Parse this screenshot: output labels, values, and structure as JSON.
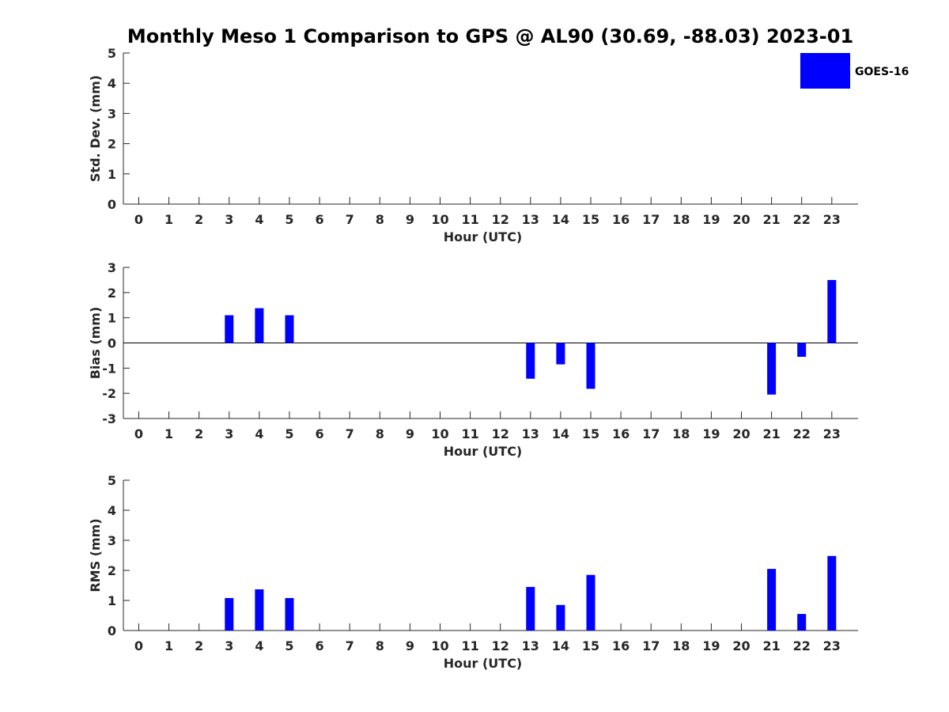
{
  "chart_data": {
    "title": "Monthly Meso 1 Comparison to GPS @ AL90 (30.69, -88.03) 2023-01",
    "legend": {
      "label": "GOES-16",
      "color": "#0000ff",
      "placement": "top-right"
    },
    "bar_color": "#0000ff",
    "subplots": [
      {
        "type": "bar",
        "xlabel": "Hour (UTC)",
        "ylabel": "Std. Dev. (mm)",
        "ylim": [
          0,
          5
        ],
        "yticks": [
          0,
          1,
          2,
          3,
          4,
          5
        ],
        "categories": [
          "0",
          "1",
          "2",
          "3",
          "4",
          "5",
          "6",
          "7",
          "8",
          "9",
          "10",
          "11",
          "12",
          "13",
          "14",
          "15",
          "16",
          "17",
          "18",
          "19",
          "20",
          "21",
          "22",
          "23"
        ],
        "values": [
          0,
          0,
          0,
          0,
          0,
          0,
          0,
          0,
          0,
          0,
          0,
          0,
          0,
          0,
          0,
          0,
          0,
          0,
          0,
          0,
          0,
          0,
          0,
          0
        ],
        "zero_line": false
      },
      {
        "type": "bar",
        "xlabel": "Hour (UTC)",
        "ylabel": "Bias (mm)",
        "ylim": [
          -3,
          3
        ],
        "yticks": [
          -3,
          -2,
          -1,
          0,
          1,
          2,
          3
        ],
        "categories": [
          "0",
          "1",
          "2",
          "3",
          "4",
          "5",
          "6",
          "7",
          "8",
          "9",
          "10",
          "11",
          "12",
          "13",
          "14",
          "15",
          "16",
          "17",
          "18",
          "19",
          "20",
          "21",
          "22",
          "23"
        ],
        "values": [
          0,
          0,
          0,
          1.1,
          1.38,
          1.1,
          0,
          0,
          0,
          0,
          0,
          0,
          0,
          -1.42,
          -0.85,
          -1.82,
          0,
          0,
          0,
          0,
          0,
          -2.05,
          -0.55,
          2.5
        ],
        "zero_line": true
      },
      {
        "type": "bar",
        "xlabel": "Hour (UTC)",
        "ylabel": "RMS (mm)",
        "ylim": [
          0,
          5
        ],
        "yticks": [
          0,
          1,
          2,
          3,
          4,
          5
        ],
        "categories": [
          "0",
          "1",
          "2",
          "3",
          "4",
          "5",
          "6",
          "7",
          "8",
          "9",
          "10",
          "11",
          "12",
          "13",
          "14",
          "15",
          "16",
          "17",
          "18",
          "19",
          "20",
          "21",
          "22",
          "23"
        ],
        "values": [
          0,
          0,
          0,
          1.08,
          1.37,
          1.08,
          0,
          0,
          0,
          0,
          0,
          0,
          0,
          1.45,
          0.85,
          1.85,
          0,
          0,
          0,
          0,
          0,
          2.05,
          0.55,
          2.48
        ],
        "zero_line": false
      }
    ]
  }
}
